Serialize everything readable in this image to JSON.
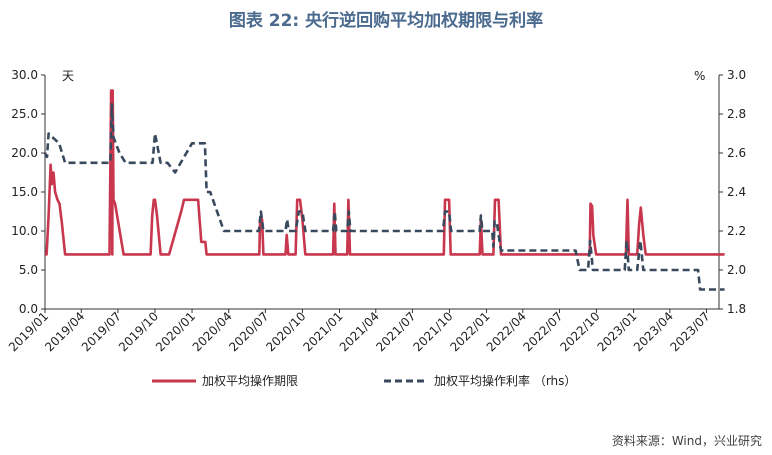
{
  "title": "图表 22: 央行逆回购平均加权期限与利率",
  "source": "资料来源：Wind，兴业研究",
  "chart_data": {
    "type": "line",
    "y_left_unit": "天",
    "y_right_unit": "%",
    "y_left_range": [
      0,
      30
    ],
    "y_right_range": [
      1.8,
      3.0
    ],
    "y_left_ticks": [
      "0.0",
      "5.0",
      "10.0",
      "15.0",
      "20.0",
      "25.0",
      "30.0"
    ],
    "y_right_ticks": [
      "1.8",
      "2.0",
      "2.2",
      "2.4",
      "2.6",
      "2.8",
      "3.0"
    ],
    "x_ticks": [
      "2019/01",
      "2019/04",
      "2019/07",
      "2019/10",
      "2020/01",
      "2020/04",
      "2020/07",
      "2020/10",
      "2021/01",
      "2021/04",
      "2021/07",
      "2021/10",
      "2022/01",
      "2022/04",
      "2022/07",
      "2022/10",
      "2023/01",
      "2023/04",
      "2023/07"
    ],
    "x_range": [
      "2019/01",
      "2023/08"
    ],
    "series": [
      {
        "name": "加权平均操作期限",
        "axis": "left",
        "color": "#c8374e",
        "style": "solid",
        "points": [
          [
            "2019/01/01",
            7
          ],
          [
            "2019/01/05",
            7
          ],
          [
            "2019/01/10",
            12
          ],
          [
            "2019/01/15",
            18.5
          ],
          [
            "2019/01/18",
            16
          ],
          [
            "2019/01/22",
            17.5
          ],
          [
            "2019/01/26",
            15
          ],
          [
            "2019/02/01",
            14
          ],
          [
            "2019/02/06",
            13.5
          ],
          [
            "2019/02/12",
            11
          ],
          [
            "2019/02/20",
            7
          ],
          [
            "2019/06/10",
            7
          ],
          [
            "2019/06/14",
            28
          ],
          [
            "2019/06/16",
            28
          ],
          [
            "2019/06/17",
            7
          ],
          [
            "2019/06/18",
            28
          ],
          [
            "2019/06/20",
            14
          ],
          [
            "2019/06/24",
            13.5
          ],
          [
            "2019/07/15",
            7
          ],
          [
            "2019/09/20",
            7
          ],
          [
            "2019/09/24",
            12
          ],
          [
            "2019/09/28",
            14
          ],
          [
            "2019/10/01",
            14
          ],
          [
            "2019/10/06",
            12
          ],
          [
            "2019/10/15",
            7
          ],
          [
            "2019/11/05",
            7
          ],
          [
            "2019/12/05",
            12.5
          ],
          [
            "2019/12/12",
            14
          ],
          [
            "2020/01/16",
            14
          ],
          [
            "2020/01/24",
            8.6
          ],
          [
            "2020/02/03",
            8.6
          ],
          [
            "2020/02/06",
            7
          ],
          [
            "2020/06/16",
            7
          ],
          [
            "2020/06/18",
            11.5
          ],
          [
            "2020/06/23",
            11.5
          ],
          [
            "2020/06/26",
            7
          ],
          [
            "2020/08/20",
            7
          ],
          [
            "2020/08/23",
            9.5
          ],
          [
            "2020/08/27",
            7
          ],
          [
            "2020/09/14",
            7
          ],
          [
            "2020/09/18",
            14
          ],
          [
            "2020/09/25",
            14
          ],
          [
            "2020/10/01",
            11.5
          ],
          [
            "2020/10/08",
            7
          ],
          [
            "2020/12/16",
            7
          ],
          [
            "2020/12/19",
            13.5
          ],
          [
            "2020/12/22",
            7
          ],
          [
            "2021/01/20",
            7
          ],
          [
            "2021/01/23",
            14
          ],
          [
            "2021/01/27",
            7
          ],
          [
            "2021/09/17",
            7
          ],
          [
            "2021/09/20",
            14
          ],
          [
            "2021/09/30",
            14
          ],
          [
            "2021/10/04",
            7
          ],
          [
            "2021/12/15",
            7
          ],
          [
            "2021/12/18",
            11.5
          ],
          [
            "2021/12/22",
            7
          ],
          [
            "2022/01/18",
            7
          ],
          [
            "2022/01/22",
            14
          ],
          [
            "2022/01/31",
            14
          ],
          [
            "2022/02/06",
            7
          ],
          [
            "2022/09/14",
            7
          ],
          [
            "2022/09/16",
            13.5
          ],
          [
            "2022/09/20",
            13.2
          ],
          [
            "2022/09/23",
            9.5
          ],
          [
            "2022/09/30",
            7
          ],
          [
            "2022/12/13",
            7
          ],
          [
            "2022/12/17",
            14
          ],
          [
            "2022/12/20",
            7
          ],
          [
            "2023/01/10",
            7
          ],
          [
            "2023/01/15",
            11
          ],
          [
            "2023/01/19",
            13
          ],
          [
            "2023/01/25",
            9.5
          ],
          [
            "2023/01/31",
            7
          ],
          [
            "2023/08/15",
            7
          ]
        ]
      },
      {
        "name": "加权平均操作利率 （rhs）",
        "axis": "right",
        "color": "#3a4a5e",
        "style": "dashed",
        "points": [
          [
            "2019/01/01",
            2.6
          ],
          [
            "2019/01/06",
            2.58
          ],
          [
            "2019/01/10",
            2.7
          ],
          [
            "2019/01/20",
            2.68
          ],
          [
            "2019/02/05",
            2.65
          ],
          [
            "2019/02/20",
            2.55
          ],
          [
            "2019/06/12",
            2.55
          ],
          [
            "2019/06/16",
            2.85
          ],
          [
            "2019/06/20",
            2.68
          ],
          [
            "2019/07/05",
            2.6
          ],
          [
            "2019/07/20",
            2.55
          ],
          [
            "2019/09/25",
            2.55
          ],
          [
            "2019/10/01",
            2.7
          ],
          [
            "2019/10/15",
            2.55
          ],
          [
            "2019/11/01",
            2.55
          ],
          [
            "2019/11/20",
            2.5
          ],
          [
            "2020/01/01",
            2.65
          ],
          [
            "2020/02/02",
            2.65
          ],
          [
            "2020/02/06",
            2.4
          ],
          [
            "2020/02/15",
            2.4
          ],
          [
            "2020/03/20",
            2.2
          ],
          [
            "2020/06/15",
            2.2
          ],
          [
            "2020/06/20",
            2.3
          ],
          [
            "2020/06/26",
            2.2
          ],
          [
            "2020/08/20",
            2.2
          ],
          [
            "2020/08/24",
            2.26
          ],
          [
            "2020/08/28",
            2.2
          ],
          [
            "2020/09/14",
            2.2
          ],
          [
            "2020/09/22",
            2.3
          ],
          [
            "2020/10/01",
            2.3
          ],
          [
            "2020/10/08",
            2.2
          ],
          [
            "2020/12/16",
            2.2
          ],
          [
            "2020/12/20",
            2.3
          ],
          [
            "2020/12/24",
            2.2
          ],
          [
            "2021/01/20",
            2.2
          ],
          [
            "2021/01/24",
            2.3
          ],
          [
            "2021/01/28",
            2.2
          ],
          [
            "2021/09/15",
            2.2
          ],
          [
            "2021/09/20",
            2.3
          ],
          [
            "2021/09/30",
            2.3
          ],
          [
            "2021/10/05",
            2.2
          ],
          [
            "2021/12/15",
            2.2
          ],
          [
            "2021/12/18",
            2.28
          ],
          [
            "2021/12/22",
            2.2
          ],
          [
            "2022/01/15",
            2.2
          ],
          [
            "2022/01/18",
            2.12
          ],
          [
            "2022/01/21",
            2.25
          ],
          [
            "2022/01/26",
            2.25
          ],
          [
            "2022/02/06",
            2.1
          ],
          [
            "2022/08/10",
            2.1
          ],
          [
            "2022/08/20",
            2.0
          ],
          [
            "2022/09/10",
            2.0
          ],
          [
            "2022/09/15",
            2.15
          ],
          [
            "2022/09/22",
            2.0
          ],
          [
            "2022/12/10",
            2.0
          ],
          [
            "2022/12/15",
            2.15
          ],
          [
            "2022/12/20",
            2.0
          ],
          [
            "2023/01/10",
            2.0
          ],
          [
            "2023/01/18",
            2.15
          ],
          [
            "2023/01/25",
            2.0
          ],
          [
            "2023/06/10",
            2.0
          ],
          [
            "2023/06/15",
            1.9
          ],
          [
            "2023/08/15",
            1.9
          ]
        ]
      }
    ]
  }
}
